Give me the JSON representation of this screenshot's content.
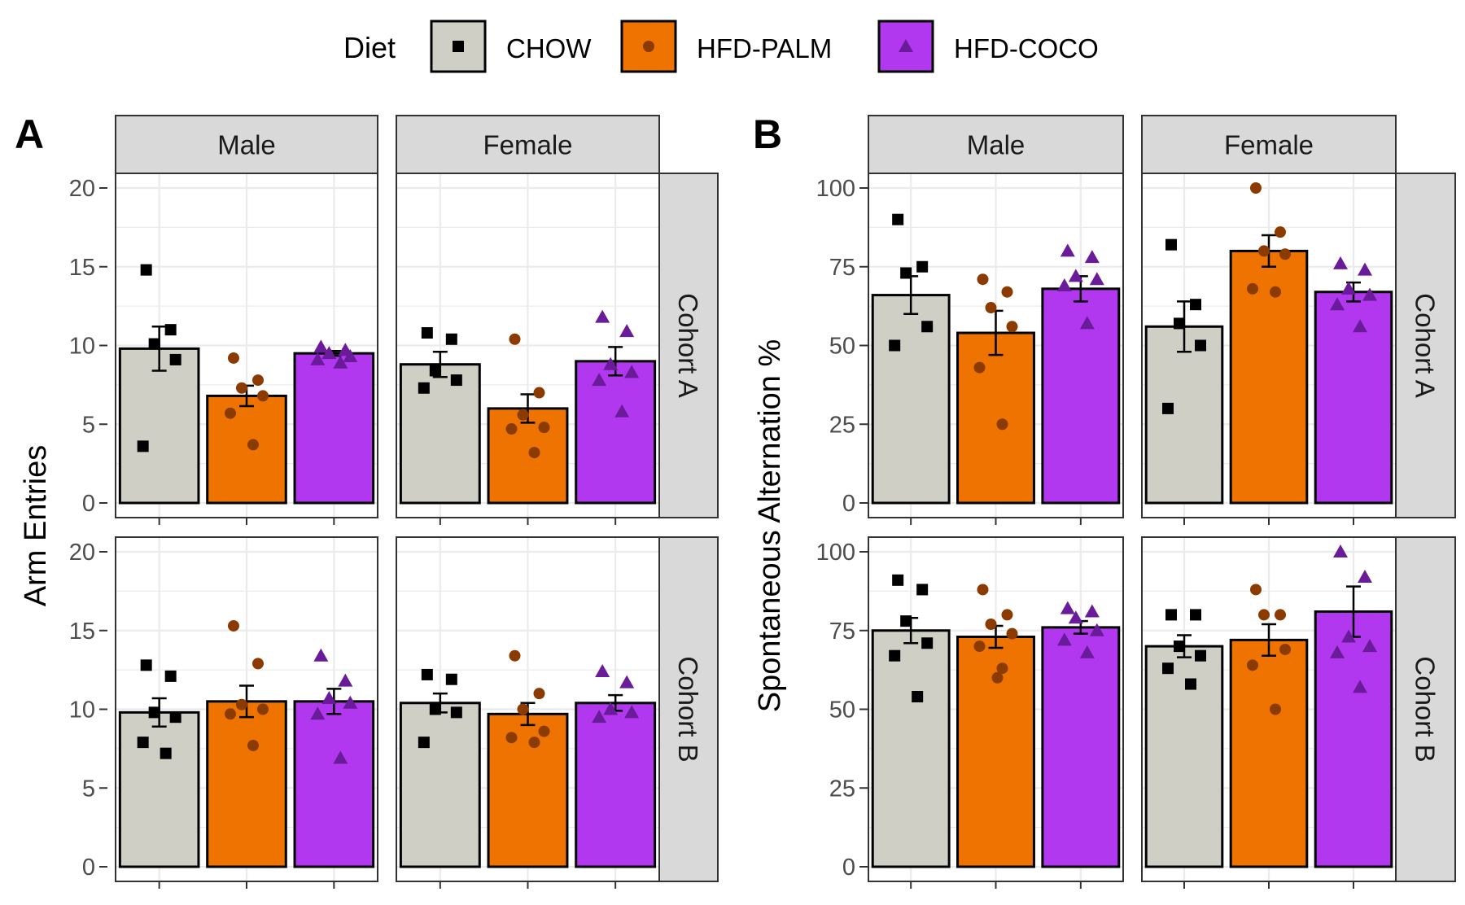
{
  "legend": {
    "title": "Diet",
    "items": [
      {
        "label": "CHOW",
        "fill": "#cfcfc5",
        "point": "#000000",
        "shape": "square"
      },
      {
        "label": "HFD-PALM",
        "fill": "#ee7300",
        "point": "#8b3a00",
        "shape": "circle"
      },
      {
        "label": "HFD-COCO",
        "fill": "#b138ef",
        "point": "#6a1b9a",
        "shape": "triangle"
      }
    ]
  },
  "panels": {
    "A": {
      "label": "A",
      "ylabel": "Arm Entries"
    },
    "B": {
      "label": "B",
      "ylabel": "Spontaneous Alternation %"
    }
  },
  "facets": {
    "cols": [
      "Male",
      "Female"
    ],
    "rows": [
      "Cohort A",
      "Cohort B"
    ]
  },
  "colors": {
    "strip_bg": "#d9d9d9",
    "grid": "#ebebeb",
    "border": "#333333",
    "bar_outline": "#000000"
  },
  "chart_data": [
    {
      "type": "bar",
      "panel": "A",
      "ylabel": "Arm Entries",
      "ylim": [
        0,
        20
      ],
      "yticks": [
        0,
        5,
        10,
        15,
        20
      ],
      "categories": [
        "CHOW",
        "HFD-PALM",
        "HFD-COCO"
      ],
      "facets": [
        {
          "col": "Male",
          "row": "Cohort A",
          "means": [
            9.8,
            6.8,
            9.5
          ],
          "se": [
            1.4,
            0.65,
            0.15
          ],
          "points": [
            [
              14.8,
              11.0,
              10.1,
              9.1,
              3.6
            ],
            [
              9.2,
              7.8,
              7.3,
              6.8,
              5.7,
              3.7
            ],
            [
              9.9,
              9.7,
              9.5,
              9.3,
              9.1,
              8.9
            ]
          ]
        },
        {
          "col": "Female",
          "row": "Cohort A",
          "means": [
            8.8,
            6.0,
            9.0
          ],
          "se": [
            0.8,
            0.9,
            0.9
          ],
          "points": [
            [
              10.8,
              10.4,
              8.4,
              7.8,
              7.3
            ],
            [
              10.4,
              7.0,
              5.6,
              4.8,
              4.7,
              3.2
            ],
            [
              11.8,
              10.9,
              8.8,
              8.3,
              7.8,
              5.8
            ]
          ]
        },
        {
          "col": "Male",
          "row": "Cohort B",
          "means": [
            9.8,
            10.5,
            10.5
          ],
          "se": [
            0.9,
            1.0,
            0.8
          ],
          "points": [
            [
              12.8,
              12.1,
              9.8,
              9.5,
              7.9,
              7.2
            ],
            [
              15.3,
              12.9,
              10.3,
              10.0,
              9.7,
              7.7
            ],
            [
              13.4,
              11.8,
              10.7,
              10.4,
              9.7,
              6.9
            ]
          ]
        },
        {
          "col": "Female",
          "row": "Cohort B",
          "means": [
            10.4,
            9.7,
            10.4
          ],
          "se": [
            0.6,
            0.7,
            0.5
          ],
          "points": [
            [
              12.2,
              11.9,
              10.0,
              9.8,
              7.9
            ],
            [
              13.4,
              11.0,
              10.0,
              8.6,
              8.2,
              7.9
            ],
            [
              12.4,
              11.7,
              10.0,
              9.8,
              9.5
            ]
          ]
        }
      ]
    },
    {
      "type": "bar",
      "panel": "B",
      "ylabel": "Spontaneous Alternation %",
      "ylim": [
        0,
        100
      ],
      "yticks": [
        0,
        25,
        50,
        75,
        100
      ],
      "categories": [
        "CHOW",
        "HFD-PALM",
        "HFD-COCO"
      ],
      "facets": [
        {
          "col": "Male",
          "row": "Cohort A",
          "means": [
            66,
            54,
            68
          ],
          "se": [
            6,
            7,
            4
          ],
          "points": [
            [
              90,
              75,
              73,
              56,
              50
            ],
            [
              71,
              67,
              62,
              56,
              43,
              25
            ],
            [
              80,
              78,
              72,
              71,
              69,
              57
            ]
          ]
        },
        {
          "col": "Female",
          "row": "Cohort A",
          "means": [
            56,
            80,
            67
          ],
          "se": [
            8,
            5,
            3
          ],
          "points": [
            [
              82,
              63,
              57,
              50,
              30
            ],
            [
              100,
              86,
              80,
              79,
              68,
              67
            ],
            [
              76,
              74,
              68,
              66,
              63,
              56
            ]
          ]
        },
        {
          "col": "Male",
          "row": "Cohort B",
          "means": [
            75,
            73,
            76
          ],
          "se": [
            4,
            3.5,
            2
          ],
          "points": [
            [
              91,
              88,
              78,
              71,
              67,
              54
            ],
            [
              88,
              80,
              77,
              74,
              70,
              63,
              60
            ],
            [
              82,
              81,
              79,
              75,
              72,
              68
            ]
          ]
        },
        {
          "col": "Female",
          "row": "Cohort B",
          "means": [
            70,
            72,
            81
          ],
          "se": [
            3.5,
            5,
            8
          ],
          "points": [
            [
              80,
              80,
              70,
              67,
              63,
              58
            ],
            [
              88,
              80,
              80,
              69,
              64,
              50
            ],
            [
              100,
              92,
              73,
              70,
              68,
              57
            ]
          ]
        }
      ]
    }
  ]
}
